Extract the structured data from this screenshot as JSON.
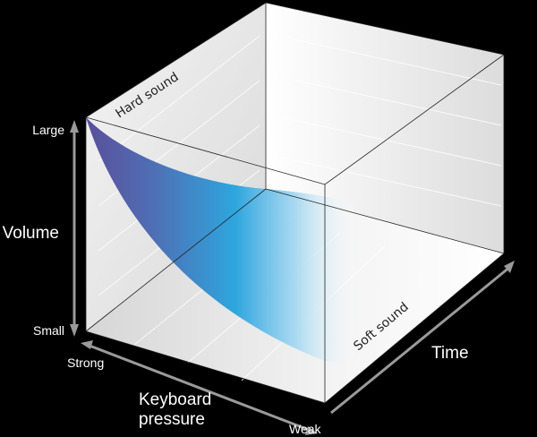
{
  "axes": {
    "volume": {
      "label": "Volume",
      "high": "Large",
      "low": "Small"
    },
    "pressure": {
      "label_line1": "Keyboard",
      "label_line2": "pressure",
      "start": "Strong",
      "end": "Weak"
    },
    "time": {
      "label": "Time"
    }
  },
  "annotations": {
    "hard": "Hard sound",
    "soft": "Soft sound"
  },
  "colors": {
    "background": "#000000",
    "surface_dark": "#5a4f9a",
    "surface_mid": "#2ea6de",
    "arrow": "#9a9a9a"
  }
}
